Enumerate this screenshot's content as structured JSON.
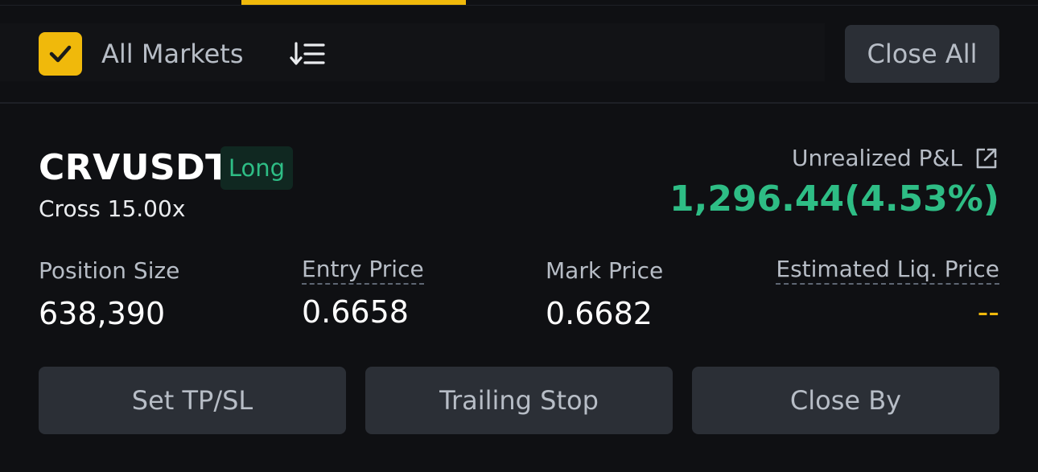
{
  "colors": {
    "background": "#0f1013",
    "accent": "#f0b90b",
    "positive": "#2ebd85",
    "button_bg": "#2b2f36",
    "badge_bg": "#102821"
  },
  "filter": {
    "checked": true,
    "all_markets_label": "All Markets",
    "sort_icon": "sort-list-icon",
    "close_all_label": "Close All"
  },
  "position": {
    "symbol": "CRVUSDT",
    "side": "Long",
    "margin_leverage": "Cross 15.00x",
    "pnl_label": "Unrealized P&L",
    "pnl_value": "1,296.44(4.53%)",
    "stats": {
      "size_label": "Position Size",
      "size_value": "638,390",
      "entry_label": "Entry Price",
      "entry_value": "0.6658",
      "mark_label": "Mark Price",
      "mark_value": "0.6682",
      "liq_label": "Estimated Liq. Price",
      "liq_value": "--"
    },
    "actions": {
      "tpsl_label": "Set TP/SL",
      "trailing_label": "Trailing Stop",
      "close_by_label": "Close By"
    }
  }
}
